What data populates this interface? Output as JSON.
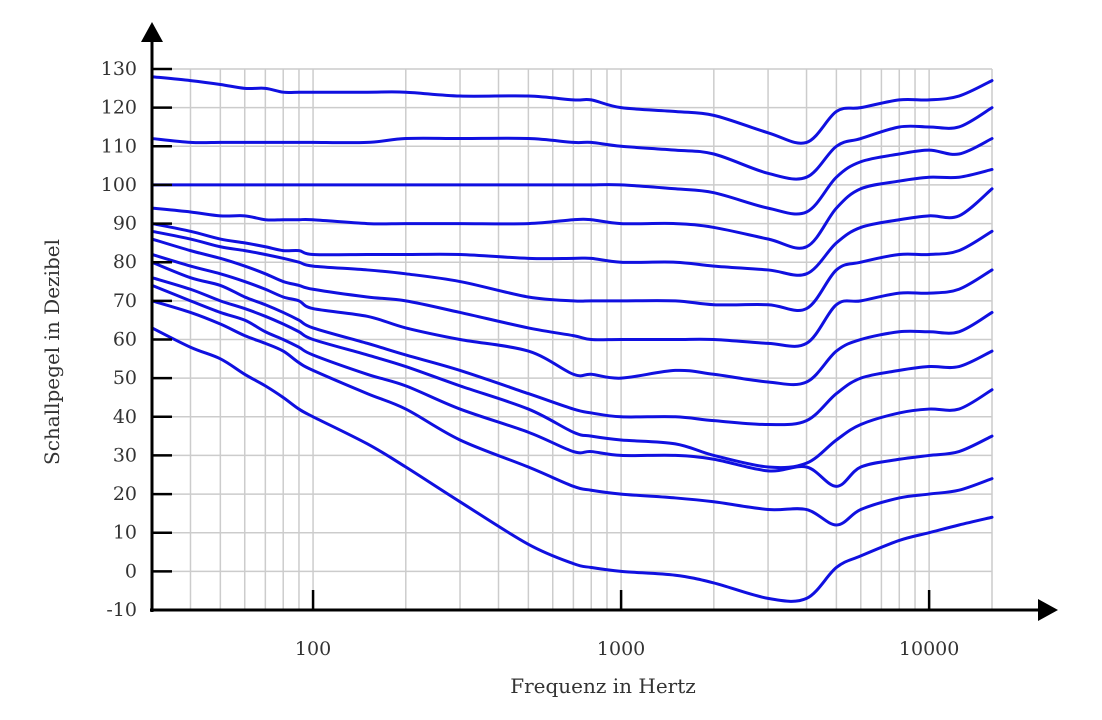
{
  "chart_data": {
    "type": "line",
    "title": "",
    "xlabel": "Frequenz in Hertz",
    "ylabel": "Schallpegel in Dezibel",
    "xscale": "log",
    "xlim": [
      30,
      16000
    ],
    "ylim": [
      -10,
      130
    ],
    "xticks": [
      {
        "value": 100,
        "label": "100"
      },
      {
        "value": 1000,
        "label": "1000"
      },
      {
        "value": 10000,
        "label": "10000"
      }
    ],
    "yticks": [
      {
        "value": 130,
        "label": "130"
      },
      {
        "value": 120,
        "label": "120"
      },
      {
        "value": 110,
        "label": "110"
      },
      {
        "value": 100,
        "label": "100"
      },
      {
        "value": 90,
        "label": "90"
      },
      {
        "value": 80,
        "label": "80"
      },
      {
        "value": 70,
        "label": "70"
      },
      {
        "value": 60,
        "label": "60"
      },
      {
        "value": 50,
        "label": "50"
      },
      {
        "value": 40,
        "label": "40"
      },
      {
        "value": 30,
        "label": "30"
      },
      {
        "value": 20,
        "label": "20"
      },
      {
        "value": 10,
        "label": "10"
      },
      {
        "value": 0,
        "label": "0"
      },
      {
        "value": -10,
        "label": "-10"
      }
    ],
    "grid": true,
    "line_color": "#1010e0",
    "grid_color": "#cccccc",
    "axis_color": "#000000",
    "x": [
      30,
      40,
      50,
      60,
      70,
      80,
      90,
      100,
      150,
      200,
      300,
      500,
      700,
      800,
      1000,
      1500,
      2000,
      3000,
      4000,
      5000,
      6000,
      8000,
      10000,
      12500,
      16000
    ],
    "series": [
      {
        "values": [
          128,
          127,
          126,
          125,
          125,
          124,
          124,
          124,
          124,
          124,
          123,
          123,
          122,
          122,
          120,
          119,
          118,
          113.5,
          111,
          119,
          120,
          122,
          122,
          123,
          127
        ]
      },
      {
        "values": [
          112,
          111,
          111,
          111,
          111,
          111,
          111,
          111,
          111,
          112,
          112,
          112,
          111,
          111,
          110,
          109,
          108,
          103,
          102,
          110,
          112,
          115,
          115,
          115,
          120
        ]
      },
      {
        "values": [
          100,
          100,
          100,
          100,
          100,
          100,
          100,
          100,
          100,
          100,
          100,
          100,
          100,
          100,
          100,
          99,
          98,
          94,
          93,
          102,
          106,
          108,
          109,
          108,
          112
        ]
      },
      {
        "values": [
          94,
          93,
          92,
          92,
          91,
          91,
          91,
          91,
          90,
          90,
          90,
          90,
          91,
          91,
          90,
          90,
          89,
          86,
          84,
          94,
          99,
          101,
          102,
          102,
          104
        ]
      },
      {
        "values": [
          90,
          88,
          86,
          85,
          84,
          83,
          83,
          82,
          82,
          82,
          82,
          81,
          81,
          81,
          80,
          80,
          79,
          78,
          77,
          85,
          89,
          91,
          92,
          92,
          99
        ]
      },
      {
        "values": [
          88,
          86,
          84,
          83,
          82,
          81,
          80,
          79,
          78,
          77,
          75,
          71,
          70,
          70,
          70,
          70,
          69,
          69,
          68,
          78,
          80,
          82,
          82,
          83,
          88
        ]
      },
      {
        "values": [
          86,
          83,
          81,
          79,
          77,
          75,
          74,
          73,
          71,
          70,
          67,
          63,
          61,
          60,
          60,
          60,
          60,
          59,
          59,
          69,
          70,
          72,
          72,
          73,
          78
        ]
      },
      {
        "values": [
          82,
          79,
          77,
          75,
          73,
          71,
          70,
          68,
          66,
          63,
          60,
          57,
          51,
          51,
          50,
          52,
          51,
          49,
          49,
          57,
          60,
          62,
          62,
          62,
          67
        ]
      },
      {
        "values": [
          80,
          76,
          74,
          71,
          69,
          67,
          65,
          63,
          59,
          56,
          52,
          46,
          42,
          41,
          40,
          40,
          39,
          38,
          39,
          46,
          50,
          52,
          53,
          53,
          57
        ]
      },
      {
        "values": [
          76,
          73,
          70,
          68,
          66,
          64,
          62,
          60,
          56,
          53,
          48,
          42,
          36,
          35,
          34,
          33,
          30,
          27,
          28,
          34,
          38,
          41,
          42,
          42,
          47
        ]
      },
      {
        "values": [
          74,
          70,
          67,
          65,
          62,
          60,
          58,
          56,
          51,
          48,
          42,
          36,
          31,
          31,
          30,
          30,
          29,
          26,
          27,
          22,
          27,
          29,
          30,
          31,
          35
        ]
      },
      {
        "values": [
          70,
          67,
          64,
          61,
          59,
          57,
          54,
          52,
          46,
          42,
          34,
          27,
          22,
          21,
          20,
          19,
          18,
          16,
          16,
          12,
          16,
          19,
          20,
          21,
          24
        ]
      },
      {
        "values": [
          63,
          58,
          55,
          51,
          48,
          45,
          42,
          40,
          33,
          27,
          18,
          7,
          2,
          1,
          0,
          -1,
          -3,
          -7,
          -7,
          1,
          4,
          8,
          10,
          12,
          14
        ]
      }
    ]
  }
}
